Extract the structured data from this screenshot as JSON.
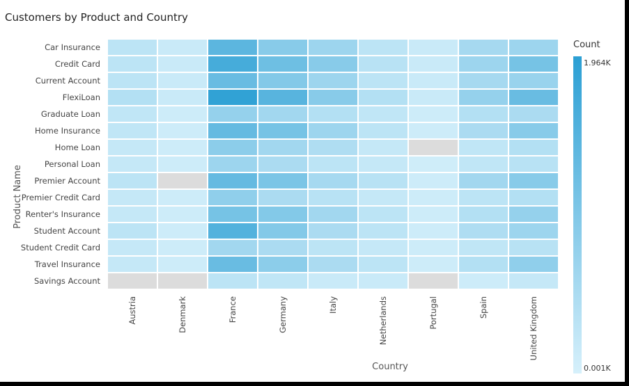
{
  "chart_data": {
    "type": "heatmap",
    "title": "Customers by Product and Country",
    "xlabel": "Country",
    "ylabel": "Product Name",
    "x_categories": [
      "Austria",
      "Denmark",
      "France",
      "Germany",
      "Italy",
      "Netherlands",
      "Portugal",
      "Spain",
      "United Kingdom"
    ],
    "y_categories": [
      "Car Insurance",
      "Credit Card",
      "Current Account",
      "FlexiLoan",
      "Graduate Loan",
      "Home Insurance",
      "Home Loan",
      "Personal Loan",
      "Premier Account",
      "Premier Credit Card",
      "Renter's Insurance",
      "Student Account",
      "Student Credit Card",
      "Travel Insurance",
      "Savings Account"
    ],
    "values": [
      [
        0.3,
        0.15,
        1.4,
        0.9,
        0.65,
        0.3,
        0.15,
        0.55,
        0.65
      ],
      [
        0.3,
        0.15,
        1.65,
        1.2,
        0.9,
        0.35,
        0.15,
        0.65,
        1.1
      ],
      [
        0.3,
        0.15,
        1.25,
        0.95,
        0.65,
        0.3,
        0.15,
        0.55,
        0.7
      ],
      [
        0.4,
        0.15,
        1.9,
        1.45,
        0.9,
        0.4,
        0.15,
        0.75,
        1.25
      ],
      [
        0.25,
        0.1,
        0.75,
        0.6,
        0.4,
        0.25,
        0.1,
        0.4,
        0.5
      ],
      [
        0.25,
        0.1,
        1.3,
        1.1,
        0.65,
        0.3,
        0.1,
        0.5,
        0.9
      ],
      [
        0.2,
        0.1,
        0.85,
        0.6,
        0.45,
        0.2,
        null,
        0.25,
        0.4
      ],
      [
        0.2,
        0.1,
        0.65,
        0.5,
        0.3,
        0.2,
        0.08,
        0.25,
        0.35
      ],
      [
        0.3,
        null,
        1.3,
        1.05,
        0.55,
        0.35,
        0.1,
        0.6,
        0.9
      ],
      [
        0.2,
        0.1,
        0.8,
        0.5,
        0.35,
        0.2,
        0.1,
        0.3,
        0.4
      ],
      [
        0.2,
        0.1,
        1.1,
        0.95,
        0.6,
        0.3,
        0.1,
        0.4,
        0.75
      ],
      [
        0.3,
        0.1,
        1.5,
        0.95,
        0.5,
        0.3,
        0.1,
        0.45,
        0.65
      ],
      [
        0.2,
        0.1,
        0.6,
        0.5,
        0.3,
        0.2,
        0.1,
        0.25,
        0.35
      ],
      [
        0.2,
        0.1,
        1.25,
        0.85,
        0.5,
        0.3,
        0.1,
        0.4,
        0.8
      ],
      [
        null,
        null,
        0.3,
        0.25,
        0.15,
        0.15,
        null,
        0.1,
        0.2
      ]
    ],
    "value_unit": "K",
    "missing_color": "#dcdcdc",
    "legend": {
      "title": "Count",
      "max_label": "1.964K",
      "min_label": "0.001K",
      "min": 0.001,
      "max": 1.964,
      "color_min": "#d6f0fb",
      "color_max": "#2b9fd4",
      "placement": "right"
    },
    "grid": false
  }
}
